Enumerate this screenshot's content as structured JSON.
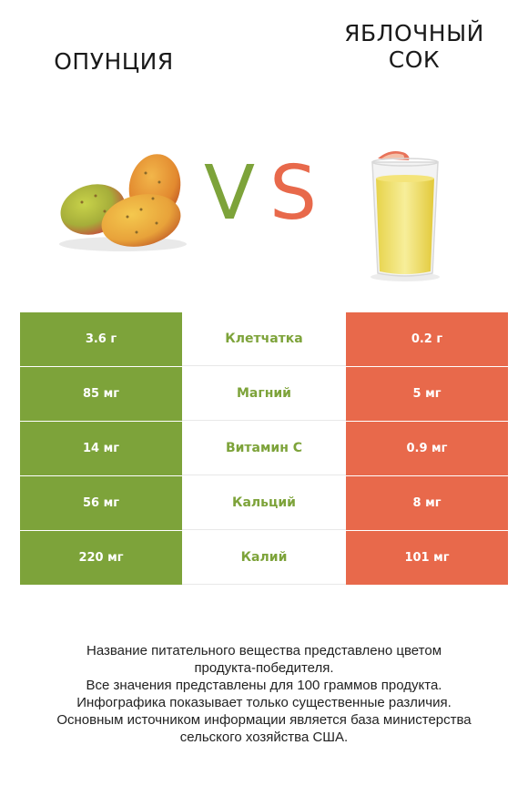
{
  "titles": {
    "left": "ОПУНЦИЯ",
    "right_line1": "ЯБЛОЧНЫЙ",
    "right_line2": "СОК"
  },
  "vs": {
    "v": "V",
    "s": "S"
  },
  "colors": {
    "left": "#7da33a",
    "right": "#e8694b"
  },
  "images": {
    "left": "prickly-pear-fruit",
    "right": "glass-of-apple-juice"
  },
  "rows": [
    {
      "left": "3.6 г",
      "nutrient": "Клетчатка",
      "right": "0.2 г",
      "winner": "left"
    },
    {
      "left": "85 мг",
      "nutrient": "Магний",
      "right": "5 мг",
      "winner": "left"
    },
    {
      "left": "14 мг",
      "nutrient": "Витамин C",
      "right": "0.9 мг",
      "winner": "left"
    },
    {
      "left": "56 мг",
      "nutrient": "Кальций",
      "right": "8 мг",
      "winner": "left"
    },
    {
      "left": "220 мг",
      "nutrient": "Калий",
      "right": "101 мг",
      "winner": "left"
    }
  ],
  "footer": {
    "line1": "Название питательного вещества представлено цветом",
    "line2": "продукта-победителя.",
    "line3": "Все значения представлены для 100 граммов продукта.",
    "line4": "Инфографика показывает только существенные различия.",
    "line5": "Основным источником информации является база министерства",
    "line6": "сельского хозяйства США."
  }
}
